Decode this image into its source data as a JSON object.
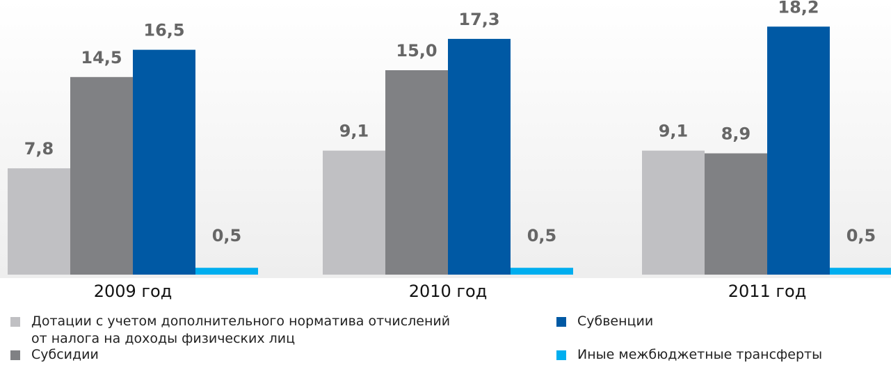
{
  "chart_data": {
    "type": "bar",
    "categories": [
      "2009 год",
      "2010 год",
      "2011 год"
    ],
    "series": [
      {
        "name": "Дотации с учетом дополнительного норматива отчислений от налога на доходы физических лиц",
        "color": "#c0c0c3",
        "values": [
          7.8,
          9.1,
          9.1
        ],
        "value_labels": [
          "7,8",
          "9,1",
          "9,1"
        ]
      },
      {
        "name": "Субсидии",
        "color": "#808184",
        "values": [
          14.5,
          15.0,
          8.9
        ],
        "value_labels": [
          "14,5",
          "15,0",
          "8,9"
        ]
      },
      {
        "name": "Субвенции",
        "color": "#0059a4",
        "values": [
          16.5,
          17.3,
          18.2
        ],
        "value_labels": [
          "16,5",
          "17,3",
          "18,2"
        ]
      },
      {
        "name": "Иные межбюджетные трансферты",
        "color": "#00aeef",
        "values": [
          0.5,
          0.5,
          0.5
        ],
        "value_labels": [
          "0,5",
          "0,5",
          "0,5"
        ]
      }
    ]
  }
}
